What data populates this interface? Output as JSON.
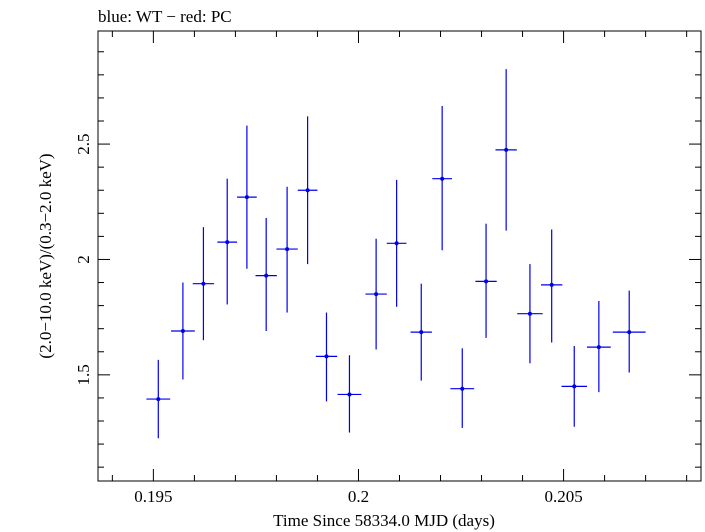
{
  "chart_data": {
    "type": "scatter",
    "title": "blue: WT − red: PC",
    "xlabel": "Time Since 58334.0 MJD (days)",
    "ylabel": "(2.0−10.0 keV)/(0.3−2.0 keV)",
    "xlim": [
      0.19365,
      0.20835
    ],
    "ylim": [
      1.04,
      2.99
    ],
    "x_ticks": [
      0.195,
      0.2,
      0.205
    ],
    "x_tick_labels": [
      "0.195",
      "0.2",
      "0.205"
    ],
    "y_ticks": [
      1.5,
      2,
      2.5
    ],
    "y_tick_labels": [
      "1.5",
      "2",
      "2.5"
    ],
    "grid": false,
    "series": [
      {
        "color": "#0000ee",
        "points": [
          {
            "x": 0.19512,
            "y": 1.395,
            "xerr": 0.00029,
            "ylo": 1.225,
            "yhi": 1.565
          },
          {
            "x": 0.19572,
            "y": 1.69,
            "xerr": 0.00029,
            "ylo": 1.48,
            "yhi": 1.9
          },
          {
            "x": 0.19622,
            "y": 1.895,
            "xerr": 0.00026,
            "ylo": 1.65,
            "yhi": 2.14
          },
          {
            "x": 0.1968,
            "y": 2.075,
            "xerr": 0.00024,
            "ylo": 1.805,
            "yhi": 2.35
          },
          {
            "x": 0.19728,
            "y": 2.27,
            "xerr": 0.00024,
            "ylo": 1.96,
            "yhi": 2.58
          },
          {
            "x": 0.19775,
            "y": 1.93,
            "xerr": 0.00026,
            "ylo": 1.69,
            "yhi": 2.18
          },
          {
            "x": 0.19826,
            "y": 2.045,
            "xerr": 0.00026,
            "ylo": 1.77,
            "yhi": 2.315
          },
          {
            "x": 0.19876,
            "y": 2.3,
            "xerr": 0.00024,
            "ylo": 1.98,
            "yhi": 2.62
          },
          {
            "x": 0.19922,
            "y": 1.58,
            "xerr": 0.00026,
            "ylo": 1.385,
            "yhi": 1.77
          },
          {
            "x": 0.19978,
            "y": 1.415,
            "xerr": 0.00029,
            "ylo": 1.25,
            "yhi": 1.585
          },
          {
            "x": 0.20043,
            "y": 1.85,
            "xerr": 0.00026,
            "ylo": 1.61,
            "yhi": 2.09
          },
          {
            "x": 0.20093,
            "y": 2.07,
            "xerr": 0.00024,
            "ylo": 1.795,
            "yhi": 2.345
          },
          {
            "x": 0.20153,
            "y": 1.685,
            "xerr": 0.00026,
            "ylo": 1.475,
            "yhi": 1.895
          },
          {
            "x": 0.20204,
            "y": 2.35,
            "xerr": 0.00024,
            "ylo": 2.04,
            "yhi": 2.665
          },
          {
            "x": 0.20253,
            "y": 1.44,
            "xerr": 0.00029,
            "ylo": 1.27,
            "yhi": 1.615
          },
          {
            "x": 0.20311,
            "y": 1.905,
            "xerr": 0.00026,
            "ylo": 1.66,
            "yhi": 2.155
          },
          {
            "x": 0.2036,
            "y": 2.475,
            "xerr": 0.00026,
            "ylo": 2.125,
            "yhi": 2.825
          },
          {
            "x": 0.20418,
            "y": 1.765,
            "xerr": 0.00031,
            "ylo": 1.55,
            "yhi": 1.98
          },
          {
            "x": 0.20471,
            "y": 1.89,
            "xerr": 0.00026,
            "ylo": 1.64,
            "yhi": 2.13
          },
          {
            "x": 0.20526,
            "y": 1.45,
            "xerr": 0.00031,
            "ylo": 1.275,
            "yhi": 1.625
          },
          {
            "x": 0.20586,
            "y": 1.62,
            "xerr": 0.00029,
            "ylo": 1.425,
            "yhi": 1.82
          },
          {
            "x": 0.2066,
            "y": 1.685,
            "xerr": 0.0004,
            "ylo": 1.51,
            "yhi": 1.865
          }
        ]
      }
    ]
  }
}
